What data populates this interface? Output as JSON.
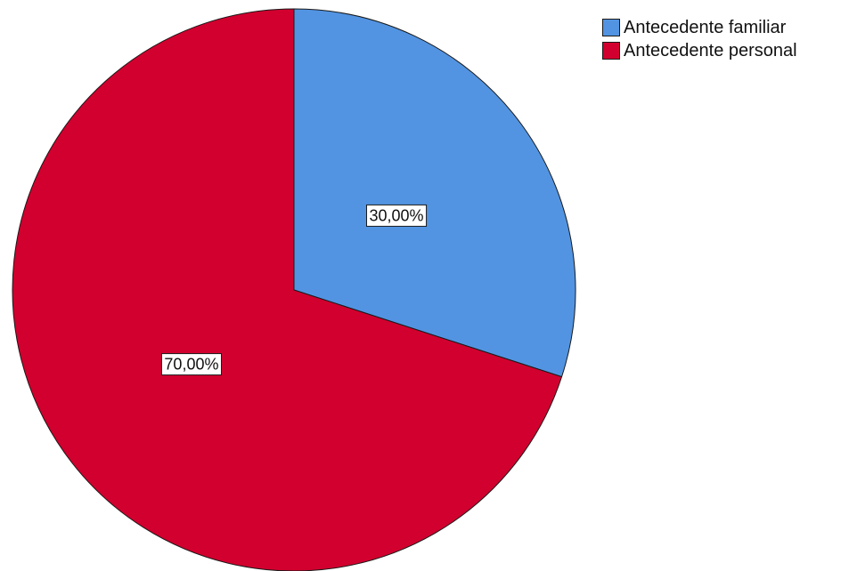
{
  "chart_data": {
    "type": "pie",
    "slices": [
      {
        "label": "Antecedente familiar",
        "value": 30.0,
        "display": "30,00%",
        "color": "#5294e2"
      },
      {
        "label": "Antecedente personal",
        "value": 70.0,
        "display": "70,00%",
        "color": "#d2002e"
      }
    ],
    "start_angle_deg": 0,
    "direction": "clockwise",
    "legend_position": "top-right"
  },
  "legend": {
    "items": [
      {
        "label": "Antecedente familiar",
        "color": "#5294e2"
      },
      {
        "label": "Antecedente personal",
        "color": "#d2002e"
      }
    ]
  }
}
